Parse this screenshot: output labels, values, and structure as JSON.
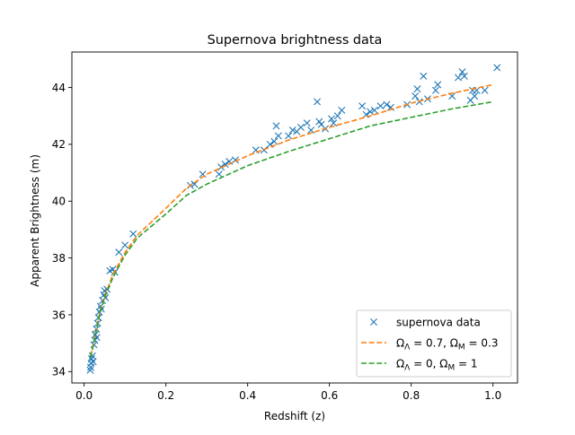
{
  "chart_data": {
    "type": "scatter",
    "title": "Supernova brightness data",
    "xlabel": "Redshift (z)",
    "ylabel": "Apparent Brightness (m)",
    "xlim": [
      -0.03,
      1.06
    ],
    "ylim": [
      33.6,
      45.25
    ],
    "x_ticks": [
      0.0,
      0.2,
      0.4,
      0.6,
      0.8,
      1.0
    ],
    "x_tick_labels": [
      "0.0",
      "0.2",
      "0.4",
      "0.6",
      "0.8",
      "1.0"
    ],
    "y_ticks": [
      34,
      36,
      38,
      40,
      42,
      44
    ],
    "y_tick_labels": [
      "34",
      "36",
      "38",
      "40",
      "42",
      "44"
    ],
    "grid": false,
    "legend_position": "bottom-right",
    "colors": {
      "scatter": "#1f77b4",
      "curve1": "#ff7f0e",
      "curve2": "#2ca02c"
    },
    "series": [
      {
        "name": "supernova data",
        "kind": "scatter",
        "marker": "x",
        "points": [
          [
            0.015,
            34.05
          ],
          [
            0.016,
            34.15
          ],
          [
            0.017,
            34.3
          ],
          [
            0.018,
            34.45
          ],
          [
            0.02,
            34.55
          ],
          [
            0.022,
            34.35
          ],
          [
            0.024,
            34.95
          ],
          [
            0.026,
            35.1
          ],
          [
            0.027,
            35.3
          ],
          [
            0.03,
            35.5
          ],
          [
            0.031,
            35.2
          ],
          [
            0.033,
            35.7
          ],
          [
            0.035,
            35.9
          ],
          [
            0.037,
            36.1
          ],
          [
            0.04,
            36.3
          ],
          [
            0.042,
            36.2
          ],
          [
            0.045,
            36.5
          ],
          [
            0.048,
            36.7
          ],
          [
            0.05,
            36.85
          ],
          [
            0.052,
            36.6
          ],
          [
            0.056,
            36.9
          ],
          [
            0.063,
            37.55
          ],
          [
            0.07,
            37.6
          ],
          [
            0.075,
            37.5
          ],
          [
            0.085,
            38.2
          ],
          [
            0.1,
            38.45
          ],
          [
            0.12,
            38.85
          ],
          [
            0.26,
            40.55
          ],
          [
            0.27,
            40.6
          ],
          [
            0.29,
            40.95
          ],
          [
            0.33,
            40.95
          ],
          [
            0.335,
            41.2
          ],
          [
            0.345,
            41.3
          ],
          [
            0.355,
            41.4
          ],
          [
            0.37,
            41.45
          ],
          [
            0.42,
            41.8
          ],
          [
            0.44,
            41.8
          ],
          [
            0.455,
            42.0
          ],
          [
            0.465,
            42.1
          ],
          [
            0.47,
            42.65
          ],
          [
            0.475,
            42.3
          ],
          [
            0.5,
            42.3
          ],
          [
            0.51,
            42.5
          ],
          [
            0.52,
            42.45
          ],
          [
            0.53,
            42.6
          ],
          [
            0.545,
            42.75
          ],
          [
            0.555,
            42.5
          ],
          [
            0.57,
            43.5
          ],
          [
            0.575,
            42.8
          ],
          [
            0.58,
            42.7
          ],
          [
            0.59,
            42.55
          ],
          [
            0.605,
            42.9
          ],
          [
            0.61,
            42.75
          ],
          [
            0.62,
            43.0
          ],
          [
            0.63,
            43.2
          ],
          [
            0.68,
            43.35
          ],
          [
            0.69,
            43.05
          ],
          [
            0.7,
            43.15
          ],
          [
            0.71,
            43.2
          ],
          [
            0.725,
            43.35
          ],
          [
            0.74,
            43.4
          ],
          [
            0.75,
            43.3
          ],
          [
            0.79,
            43.4
          ],
          [
            0.81,
            43.7
          ],
          [
            0.815,
            43.95
          ],
          [
            0.82,
            43.5
          ],
          [
            0.83,
            44.4
          ],
          [
            0.84,
            43.6
          ],
          [
            0.86,
            43.9
          ],
          [
            0.865,
            44.1
          ],
          [
            0.9,
            43.7
          ],
          [
            0.915,
            44.35
          ],
          [
            0.925,
            44.55
          ],
          [
            0.93,
            44.4
          ],
          [
            0.945,
            43.55
          ],
          [
            0.95,
            43.9
          ],
          [
            0.955,
            43.7
          ],
          [
            0.96,
            43.9
          ],
          [
            0.98,
            43.9
          ],
          [
            1.01,
            44.7
          ]
        ]
      },
      {
        "name": "Ω_Λ = 0.7, Ω_M = 0.3",
        "kind": "line",
        "dash": "dashed",
        "points": [
          [
            0.015,
            34.55
          ],
          [
            0.02,
            34.8
          ],
          [
            0.03,
            35.5
          ],
          [
            0.04,
            36.2
          ],
          [
            0.05,
            36.65
          ],
          [
            0.07,
            37.4
          ],
          [
            0.1,
            38.2
          ],
          [
            0.13,
            38.8
          ],
          [
            0.2,
            39.75
          ],
          [
            0.25,
            40.45
          ],
          [
            0.3,
            40.95
          ],
          [
            0.4,
            41.6
          ],
          [
            0.5,
            42.15
          ],
          [
            0.6,
            42.6
          ],
          [
            0.7,
            43.0
          ],
          [
            0.8,
            43.45
          ],
          [
            0.9,
            43.8
          ],
          [
            1.0,
            44.1
          ]
        ]
      },
      {
        "name": "Ω_Λ = 0, Ω_M = 1",
        "kind": "line",
        "dash": "dashed",
        "points": [
          [
            0.015,
            34.5
          ],
          [
            0.02,
            34.75
          ],
          [
            0.03,
            35.45
          ],
          [
            0.04,
            36.15
          ],
          [
            0.05,
            36.6
          ],
          [
            0.07,
            37.3
          ],
          [
            0.1,
            38.1
          ],
          [
            0.13,
            38.7
          ],
          [
            0.2,
            39.55
          ],
          [
            0.25,
            40.2
          ],
          [
            0.3,
            40.6
          ],
          [
            0.4,
            41.25
          ],
          [
            0.5,
            41.75
          ],
          [
            0.6,
            42.2
          ],
          [
            0.7,
            42.65
          ],
          [
            0.8,
            42.95
          ],
          [
            0.9,
            43.25
          ],
          [
            1.0,
            43.5
          ]
        ]
      }
    ],
    "legend": {
      "entries": [
        {
          "label": "supernova data",
          "kind": "marker",
          "color": "#1f77b4"
        },
        {
          "label_main": "Ω",
          "label_sub": "Λ",
          "label_rest": " = 0.7, ",
          "label_main2": "Ω",
          "label_sub2": "M",
          "label_rest2": " = 0.3",
          "kind": "line",
          "color": "#ff7f0e"
        },
        {
          "label_main": "Ω",
          "label_sub": "Λ",
          "label_rest": " = 0, ",
          "label_main2": "Ω",
          "label_sub2": "M",
          "label_rest2": " = 1",
          "kind": "line",
          "color": "#2ca02c"
        }
      ]
    }
  }
}
